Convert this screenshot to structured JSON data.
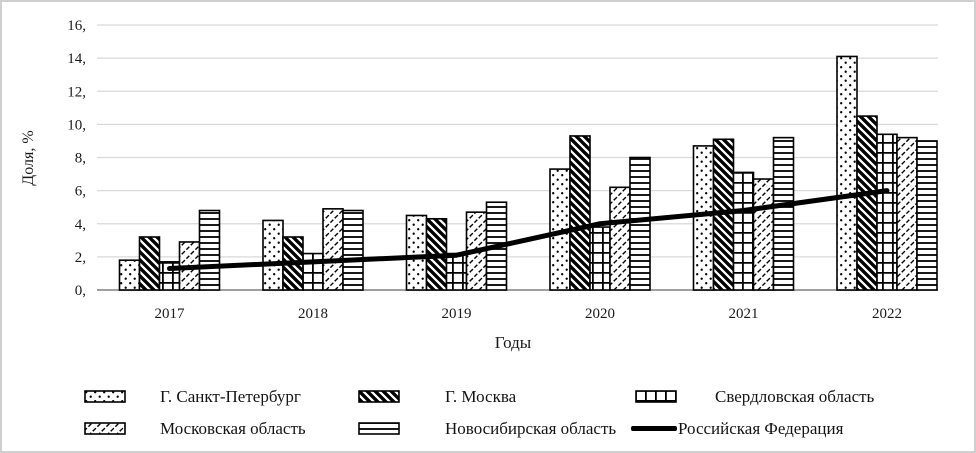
{
  "chart_data": {
    "type": "bar",
    "title": "",
    "categories": [
      "2017",
      "2018",
      "2019",
      "2020",
      "2021",
      "2022"
    ],
    "series": [
      {
        "name": "Г. Санкт-Петербург",
        "pattern": "dots",
        "values": [
          1.8,
          4.2,
          4.5,
          7.3,
          8.7,
          14.1
        ]
      },
      {
        "name": "Г. Москва",
        "pattern": "diagonal-wide",
        "values": [
          3.2,
          3.2,
          4.3,
          9.3,
          9.1,
          10.5
        ]
      },
      {
        "name": "Свердловская область",
        "pattern": "grid",
        "values": [
          1.7,
          2.2,
          2.2,
          3.8,
          7.1,
          9.4
        ]
      },
      {
        "name": "Московская область",
        "pattern": "diagonal-light",
        "values": [
          2.9,
          4.9,
          4.7,
          6.2,
          6.7,
          9.2
        ]
      },
      {
        "name": "Новосибирская область",
        "pattern": "horizontal-lines",
        "values": [
          4.8,
          4.8,
          5.3,
          8.0,
          9.2,
          9.0
        ]
      }
    ],
    "line_series": {
      "name": "Российская Федерация",
      "values": [
        1.3,
        1.7,
        2.1,
        4.0,
        4.8,
        6.0
      ]
    },
    "xlabel": "Годы",
    "ylabel": "Доля, %",
    "ylim": [
      0,
      16
    ],
    "ytick_step": 2,
    "ytick_labels": [
      "0,",
      "2,",
      "4,",
      "6,",
      "8,",
      "10,",
      "12,",
      "14,",
      "16,"
    ],
    "grid": true,
    "legend_position": "bottom",
    "colors": {
      "foreground": "#000000",
      "gridline": "#d9d9d9",
      "axis_line": "#a0a0a0",
      "text": "#1a1a1a",
      "background": "#ffffff"
    }
  }
}
